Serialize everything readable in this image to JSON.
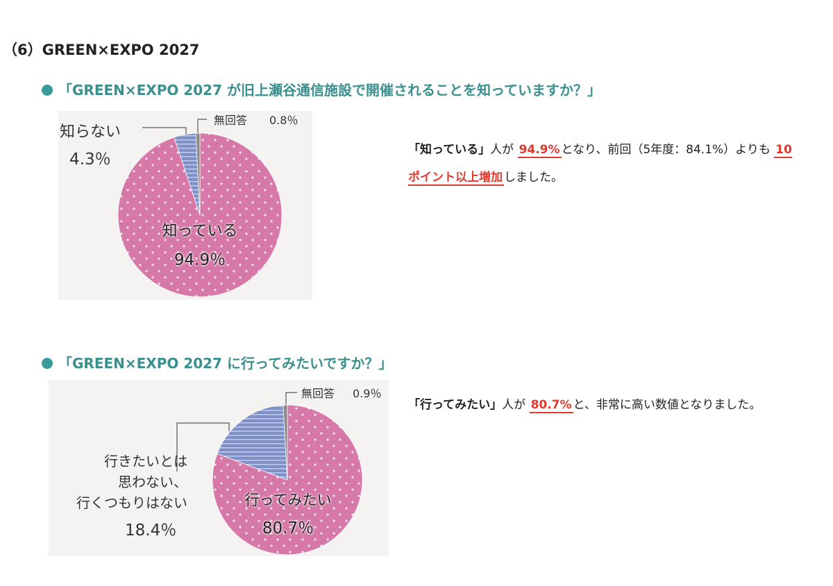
{
  "heading": "（6）GREEN×EXPO 2027",
  "chart_data": [
    {
      "type": "pie",
      "title": "「GREEN×EXPO 2027 が旧上瀬谷通信施設で開催されることを知っていますか？」",
      "categories": [
        "知っている",
        "知らない",
        "無回答"
      ],
      "values": [
        94.9,
        4.3,
        0.8
      ],
      "value_labels": [
        "94.9％",
        "4.3％",
        "0.8％"
      ],
      "colors": [
        "#d679a8",
        "#7f90c6",
        "#8a8a8a"
      ]
    },
    {
      "type": "pie",
      "title": "「GREEN×EXPO 2027 に行ってみたいですか？」",
      "categories": [
        "行ってみたい",
        "行きたいとは\n思わない、\n行くつもりはない",
        "無回答"
      ],
      "values": [
        80.7,
        18.4,
        0.9
      ],
      "value_labels": [
        "80.7％",
        "18.4％",
        "0.9％"
      ],
      "colors": [
        "#d679a8",
        "#7f90c6",
        "#8a8a8a"
      ]
    }
  ],
  "notes": [
    [
      "「知っている」",
      "人が ",
      "94.9%",
      "となり、前回（5年度：84.1%）よりも ",
      "10 ポイント以上増加",
      "しました。"
    ],
    [
      "「行ってみたい」",
      "人が ",
      "80.7%",
      "と、非常に高い数値となりました。"
    ]
  ]
}
